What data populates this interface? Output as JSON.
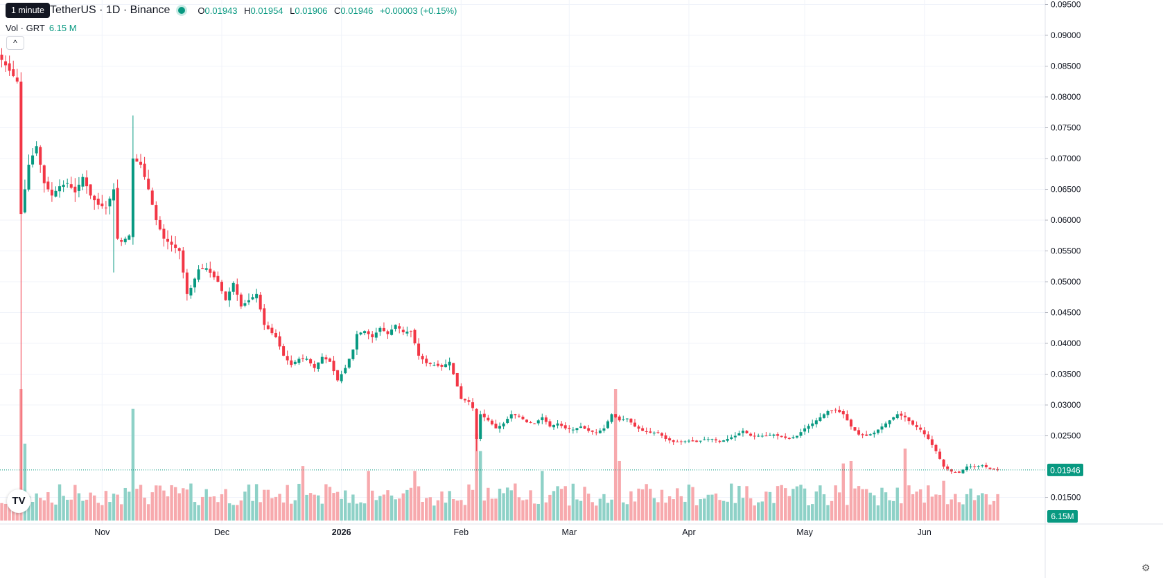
{
  "header": {
    "symbol_text": "TetherUS · 1D · Binance",
    "tooltip": "1 minute",
    "ohlc": {
      "O": "0.01943",
      "H": "0.01954",
      "L": "0.01906",
      "C": "0.01946",
      "change": "+0.00003 (+0.15%)"
    },
    "volume_label": "Vol · GRT",
    "volume_value": "6.15 M"
  },
  "controls": {
    "collapse_glyph": "^",
    "logo_text": "TV",
    "settings_icon": "gear-icon",
    "settings_glyph": "⚙"
  },
  "colors": {
    "up": "#089981",
    "down": "#f23645",
    "up_volume": "#8ed1c7",
    "down_volume": "#f7a9ad",
    "grid": "#f0f3fa",
    "axis_text": "#131722",
    "last_price_label": "#089981"
  },
  "chart_data": {
    "type": "candlestick",
    "y_axis": {
      "range": [
        0.0145,
        0.095
      ],
      "tick_labels": [
        "0.09500",
        "0.09000",
        "0.08500",
        "0.08000",
        "0.07500",
        "0.07000",
        "0.06500",
        "0.06000",
        "0.05500",
        "0.05000",
        "0.04500",
        "0.04000",
        "0.03500",
        "0.03000",
        "0.02500",
        "0.01500"
      ]
    },
    "x_axis": {
      "tick_labels": [
        "Nov",
        "Dec",
        "2026",
        "Feb",
        "Mar",
        "Apr",
        "May",
        "Jun"
      ],
      "tick_candle_index": [
        26,
        57,
        88,
        119,
        147,
        178,
        208,
        239
      ]
    },
    "last_price": "0.01946",
    "last_volume": "6.15M",
    "volume_max_millions": 53,
    "close_anchors": [
      [
        0,
        0.086
      ],
      [
        4,
        0.0825
      ],
      [
        5,
        0.061
      ],
      [
        7,
        0.069
      ],
      [
        9,
        0.072
      ],
      [
        11,
        0.066
      ],
      [
        13,
        0.064
      ],
      [
        15,
        0.0655
      ],
      [
        17,
        0.066
      ],
      [
        19,
        0.0645
      ],
      [
        21,
        0.067
      ],
      [
        23,
        0.064
      ],
      [
        25,
        0.0625
      ],
      [
        27,
        0.062
      ],
      [
        29,
        0.065
      ],
      [
        30,
        0.057
      ],
      [
        31,
        0.0565
      ],
      [
        33,
        0.0575
      ],
      [
        34,
        0.07
      ],
      [
        36,
        0.069
      ],
      [
        38,
        0.065
      ],
      [
        40,
        0.06
      ],
      [
        42,
        0.057
      ],
      [
        44,
        0.056
      ],
      [
        46,
        0.055
      ],
      [
        48,
        0.048
      ],
      [
        49,
        0.049
      ],
      [
        51,
        0.052
      ],
      [
        53,
        0.0522
      ],
      [
        56,
        0.05
      ],
      [
        58,
        0.047
      ],
      [
        60,
        0.0498
      ],
      [
        62,
        0.046
      ],
      [
        64,
        0.047
      ],
      [
        66,
        0.048
      ],
      [
        68,
        0.043
      ],
      [
        71,
        0.041
      ],
      [
        73,
        0.038
      ],
      [
        75,
        0.0365
      ],
      [
        77,
        0.0375
      ],
      [
        79,
        0.0375
      ],
      [
        81,
        0.036
      ],
      [
        83,
        0.0378
      ],
      [
        85,
        0.037
      ],
      [
        87,
        0.034
      ],
      [
        89,
        0.036
      ],
      [
        91,
        0.039
      ],
      [
        92,
        0.0415
      ],
      [
        94,
        0.042
      ],
      [
        96,
        0.041
      ],
      [
        98,
        0.0425
      ],
      [
        100,
        0.0415
      ],
      [
        102,
        0.043
      ],
      [
        104,
        0.0418
      ],
      [
        106,
        0.042
      ],
      [
        108,
        0.038
      ],
      [
        110,
        0.0368
      ],
      [
        112,
        0.0365
      ],
      [
        114,
        0.0362
      ],
      [
        116,
        0.037
      ],
      [
        118,
        0.033
      ],
      [
        119,
        0.031
      ],
      [
        121,
        0.0305
      ],
      [
        122,
        0.0295
      ],
      [
        123,
        0.0245
      ],
      [
        124,
        0.0285
      ],
      [
        126,
        0.0275
      ],
      [
        128,
        0.0262
      ],
      [
        130,
        0.027
      ],
      [
        132,
        0.0285
      ],
      [
        134,
        0.0282
      ],
      [
        136,
        0.0272
      ],
      [
        138,
        0.027
      ],
      [
        140,
        0.028
      ],
      [
        142,
        0.0265
      ],
      [
        144,
        0.027
      ],
      [
        146,
        0.0262
      ],
      [
        148,
        0.026
      ],
      [
        150,
        0.0265
      ],
      [
        152,
        0.0258
      ],
      [
        154,
        0.0255
      ],
      [
        156,
        0.0262
      ],
      [
        158,
        0.0285
      ],
      [
        160,
        0.0275
      ],
      [
        162,
        0.0278
      ],
      [
        164,
        0.0265
      ],
      [
        166,
        0.0258
      ],
      [
        168,
        0.0255
      ],
      [
        170,
        0.0255
      ],
      [
        172,
        0.0245
      ],
      [
        174,
        0.024
      ],
      [
        176,
        0.024
      ],
      [
        178,
        0.0242
      ],
      [
        180,
        0.024
      ],
      [
        182,
        0.0244
      ],
      [
        184,
        0.0245
      ],
      [
        186,
        0.024
      ],
      [
        188,
        0.0245
      ],
      [
        190,
        0.025
      ],
      [
        192,
        0.0258
      ],
      [
        194,
        0.025
      ],
      [
        196,
        0.025
      ],
      [
        198,
        0.025
      ],
      [
        200,
        0.0252
      ],
      [
        202,
        0.0248
      ],
      [
        204,
        0.0245
      ],
      [
        206,
        0.025
      ],
      [
        208,
        0.0262
      ],
      [
        210,
        0.027
      ],
      [
        212,
        0.028
      ],
      [
        214,
        0.029
      ],
      [
        216,
        0.0292
      ],
      [
        218,
        0.0285
      ],
      [
        220,
        0.0265
      ],
      [
        222,
        0.0252
      ],
      [
        224,
        0.025
      ],
      [
        226,
        0.0255
      ],
      [
        228,
        0.0265
      ],
      [
        230,
        0.0275
      ],
      [
        232,
        0.0285
      ],
      [
        234,
        0.028
      ],
      [
        236,
        0.0268
      ],
      [
        238,
        0.026
      ],
      [
        240,
        0.0245
      ],
      [
        242,
        0.0225
      ],
      [
        244,
        0.02
      ],
      [
        246,
        0.0192
      ],
      [
        248,
        0.019
      ],
      [
        250,
        0.02
      ],
      [
        252,
        0.02
      ],
      [
        254,
        0.0202
      ],
      [
        256,
        0.0196
      ],
      [
        258,
        0.01946
      ]
    ]
  }
}
